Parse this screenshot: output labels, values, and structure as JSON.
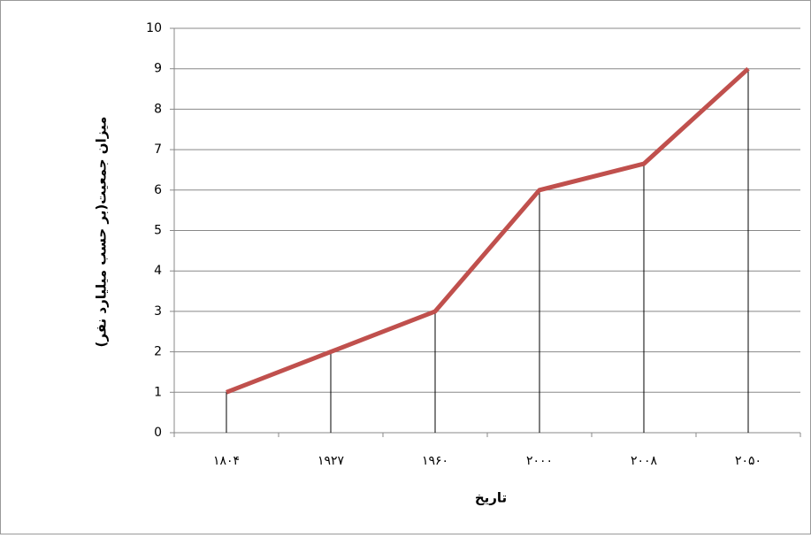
{
  "chart_data": {
    "type": "line",
    "x_label": "تاریخ",
    "y_label": "میزان جمعیت(بر حسب میلیارد نفر)",
    "categories": [
      "۱۸۰۴",
      "۱۹۲۷",
      "۱۹۶۰",
      "۲۰۰۰",
      "۲۰۰۸",
      "۲۰۵۰"
    ],
    "series": [
      {
        "color": "#c0504d",
        "values": [
          1,
          2,
          3,
          6,
          6.65,
          9
        ]
      }
    ],
    "ylim": [
      0,
      10
    ],
    "yticks": [
      0,
      1,
      2,
      3,
      4,
      5,
      6,
      7,
      8,
      9,
      10
    ],
    "grid": true,
    "drop_lines": true
  }
}
